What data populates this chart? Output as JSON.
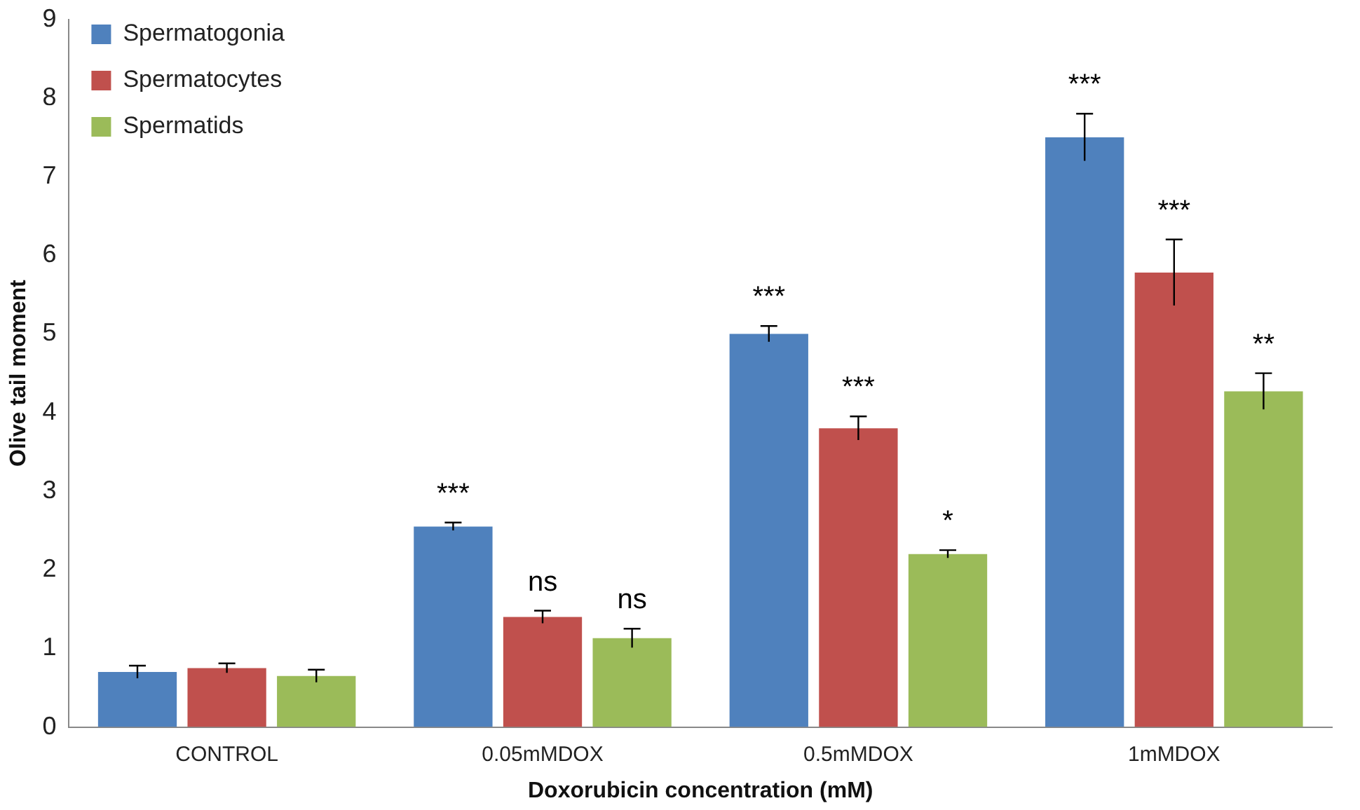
{
  "chart_data": {
    "type": "bar",
    "xlabel": "Doxorubicin concentration (mM)",
    "ylabel": "Olive tail moment",
    "categories": [
      "CONTROL",
      "0.05mMDOX",
      "0.5mMDOX",
      "1mMDOX"
    ],
    "series": [
      {
        "name": "Spermatogonia",
        "color": "#4f81bd",
        "values": [
          0.7,
          2.55,
          5.0,
          7.5
        ],
        "errors": [
          0.08,
          0.05,
          0.1,
          0.3
        ],
        "value_labels": [
          null,
          "***",
          "***",
          "***"
        ]
      },
      {
        "name": "Spermatocytes",
        "color": "#c0504d",
        "values": [
          0.75,
          1.4,
          3.8,
          5.78
        ],
        "errors": [
          0.06,
          0.08,
          0.15,
          0.42
        ],
        "value_labels": [
          null,
          "ns",
          "***",
          "***"
        ]
      },
      {
        "name": "Spermatids",
        "color": "#9bbb59",
        "values": [
          0.65,
          1.13,
          2.2,
          4.27
        ],
        "errors": [
          0.08,
          0.12,
          0.05,
          0.23
        ],
        "value_labels": [
          null,
          "ns",
          "*",
          "**"
        ]
      }
    ],
    "ylim": [
      0,
      9
    ],
    "yticks": [
      0,
      1,
      2,
      3,
      4,
      5,
      6,
      7,
      8,
      9
    ],
    "grid": false,
    "legend": "top left"
  }
}
